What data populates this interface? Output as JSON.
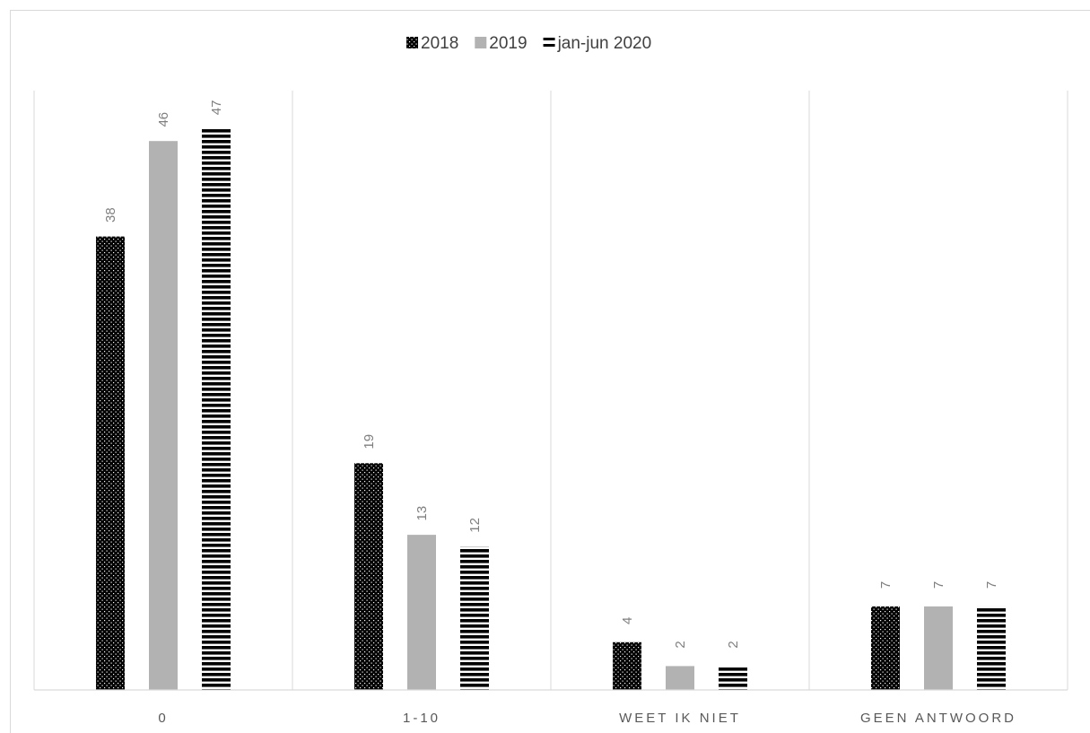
{
  "chart_data": {
    "type": "bar",
    "categories": [
      "0",
      "1-10",
      "WEET IK NIET",
      "GEEN ANTWOORD"
    ],
    "series": [
      {
        "name": "2018",
        "values": [
          38,
          19,
          4,
          7
        ],
        "color": "#000000",
        "pattern": "dots"
      },
      {
        "name": "2019",
        "values": [
          46,
          13,
          2,
          7
        ],
        "color": "#b2b2b2",
        "pattern": "solid"
      },
      {
        "name": "jan-jun 2020",
        "values": [
          47,
          12,
          2,
          7
        ],
        "color": "#000000",
        "pattern": "horizontal-stripes"
      }
    ],
    "title": "",
    "xlabel": "",
    "ylabel": "",
    "ylim": [
      0,
      50
    ],
    "data_labels": true,
    "data_label_rotation": "vertical",
    "grid": false,
    "category_separators": true,
    "legend": "top-center"
  }
}
